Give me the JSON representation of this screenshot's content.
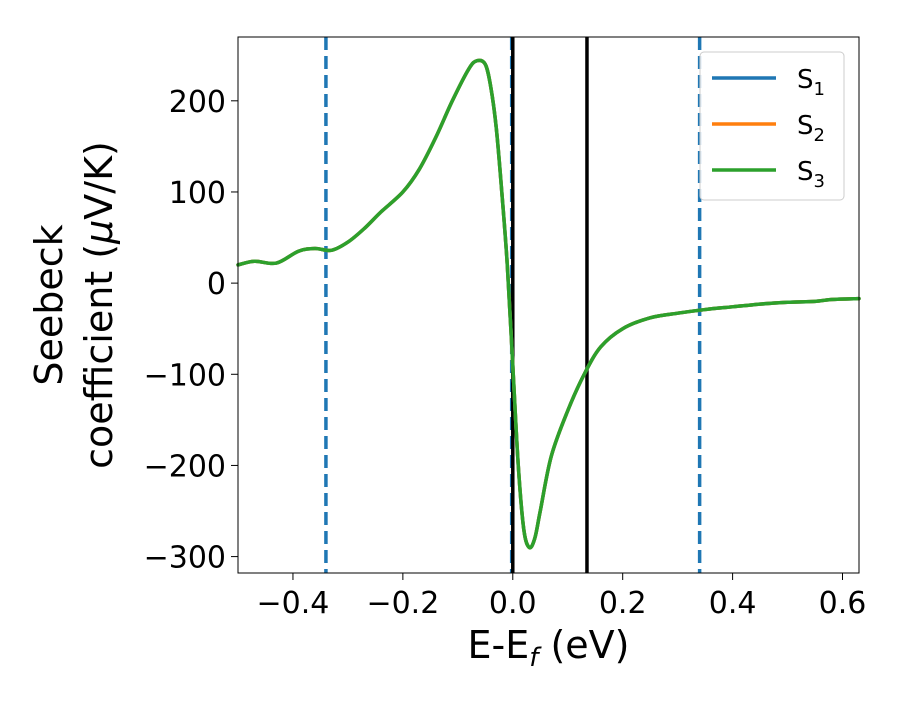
{
  "chart_data": {
    "type": "line",
    "xlabel_main": "E-E",
    "xlabel_sub": "f",
    "xlabel_unit": " (eV)",
    "ylabel_line1": "Seebeck",
    "ylabel_line2_text": "coefficient  (",
    "ylabel_line2_symbol": "μ",
    "ylabel_line2_unit": "V/K)",
    "xlim": [
      -0.5,
      0.63
    ],
    "ylim": [
      -318,
      270
    ],
    "x_ticks": [
      {
        "value": -0.4,
        "label": "−0.4"
      },
      {
        "value": -0.2,
        "label": "−0.2"
      },
      {
        "value": 0.0,
        "label": "0.0"
      },
      {
        "value": 0.2,
        "label": "0.2"
      },
      {
        "value": 0.4,
        "label": "0.4"
      },
      {
        "value": 0.6,
        "label": "0.6"
      }
    ],
    "y_ticks": [
      {
        "value": 200,
        "label": "200"
      },
      {
        "value": 100,
        "label": "100"
      },
      {
        "value": 0,
        "label": "0"
      },
      {
        "value": -100,
        "label": "−100"
      },
      {
        "value": -200,
        "label": "−200"
      },
      {
        "value": -300,
        "label": "−300"
      }
    ],
    "grid": false,
    "legend_position": "top-right",
    "series": [
      {
        "name": "S",
        "sub": "1",
        "color": "#1f77b4",
        "x": [
          -0.5,
          -0.47,
          -0.43,
          -0.39,
          -0.36,
          -0.33,
          -0.3,
          -0.27,
          -0.24,
          -0.2,
          -0.17,
          -0.14,
          -0.11,
          -0.08,
          -0.065,
          -0.05,
          -0.04,
          -0.03,
          -0.02,
          -0.01,
          0.0,
          0.01,
          0.02,
          0.03,
          0.04,
          0.05,
          0.07,
          0.1,
          0.13,
          0.16,
          0.2,
          0.25,
          0.3,
          0.35,
          0.4,
          0.45,
          0.5,
          0.55,
          0.58,
          0.63
        ],
        "y": [
          20,
          24,
          22,
          35,
          38,
          36,
          45,
          60,
          78,
          100,
          125,
          160,
          200,
          235,
          244,
          240,
          215,
          170,
          100,
          20,
          -90,
          -200,
          -270,
          -290,
          -280,
          -250,
          -190,
          -140,
          -100,
          -70,
          -50,
          -38,
          -33,
          -29,
          -26,
          -23,
          -21,
          -20,
          -18,
          -17
        ]
      },
      {
        "name": "S",
        "sub": "2",
        "color": "#ff7f0e",
        "x": [
          -0.5,
          -0.47,
          -0.43,
          -0.39,
          -0.36,
          -0.33,
          -0.3,
          -0.27,
          -0.24,
          -0.2,
          -0.17,
          -0.14,
          -0.11,
          -0.08,
          -0.065,
          -0.05,
          -0.04,
          -0.03,
          -0.02,
          -0.01,
          0.0,
          0.01,
          0.02,
          0.03,
          0.04,
          0.05,
          0.07,
          0.1,
          0.13,
          0.16,
          0.2,
          0.25,
          0.3,
          0.35,
          0.4,
          0.45,
          0.5,
          0.55,
          0.58,
          0.63
        ],
        "y": [
          20,
          24,
          22,
          35,
          38,
          36,
          45,
          60,
          78,
          100,
          125,
          160,
          200,
          235,
          244,
          240,
          215,
          170,
          100,
          20,
          -90,
          -200,
          -270,
          -290,
          -280,
          -250,
          -190,
          -140,
          -100,
          -70,
          -50,
          -38,
          -33,
          -29,
          -26,
          -23,
          -21,
          -20,
          -18,
          -17
        ]
      },
      {
        "name": "S",
        "sub": "3",
        "color": "#2ca02c",
        "x": [
          -0.5,
          -0.47,
          -0.43,
          -0.39,
          -0.36,
          -0.33,
          -0.3,
          -0.27,
          -0.24,
          -0.2,
          -0.17,
          -0.14,
          -0.11,
          -0.08,
          -0.065,
          -0.05,
          -0.04,
          -0.03,
          -0.02,
          -0.01,
          0.0,
          0.01,
          0.02,
          0.03,
          0.04,
          0.05,
          0.07,
          0.1,
          0.13,
          0.16,
          0.2,
          0.25,
          0.3,
          0.35,
          0.4,
          0.45,
          0.5,
          0.55,
          0.58,
          0.63
        ],
        "y": [
          20,
          24,
          22,
          35,
          38,
          36,
          45,
          60,
          78,
          100,
          125,
          160,
          200,
          235,
          244,
          240,
          215,
          170,
          100,
          20,
          -90,
          -200,
          -270,
          -290,
          -280,
          -250,
          -190,
          -140,
          -100,
          -70,
          -50,
          -38,
          -33,
          -29,
          -26,
          -23,
          -21,
          -20,
          -18,
          -17
        ]
      }
    ],
    "vertical_lines": [
      {
        "x": -0.34,
        "style": "dashed",
        "color": "#1f77b4"
      },
      {
        "x": -0.002,
        "style": "dashed",
        "color": "#1f77b4"
      },
      {
        "x": 0.34,
        "style": "dashed",
        "color": "#1f77b4"
      },
      {
        "x": 0.0,
        "style": "solid",
        "color": "#000000"
      },
      {
        "x": 0.135,
        "style": "solid",
        "color": "#000000"
      }
    ]
  }
}
